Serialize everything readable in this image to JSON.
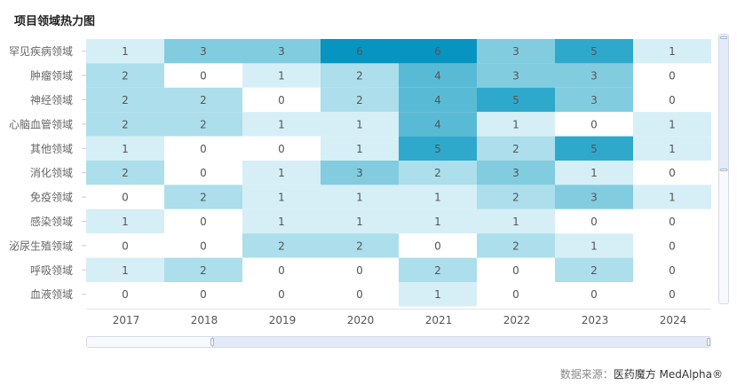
{
  "title": "项目领域热力图",
  "source_label": "数据来源：",
  "source_brand": "医药魔方 MedAlpha®",
  "colors": {
    "scale": [
      "#ffffff",
      "#d6eff6",
      "#acdeeb",
      "#82cce0",
      "#59bad5",
      "#2fa9cb",
      "#0894c0"
    ]
  },
  "chart_data": {
    "type": "heatmap",
    "x": [
      "2017",
      "2018",
      "2019",
      "2020",
      "2021",
      "2022",
      "2023",
      "2024"
    ],
    "y": [
      "罕见疾病领域",
      "肿瘤领域",
      "神经领域",
      "心脑血管领域",
      "其他领域",
      "消化领域",
      "免疫领域",
      "感染领域",
      "泌尿生殖领域",
      "呼吸领域",
      "血液领域"
    ],
    "values": [
      [
        1,
        3,
        3,
        6,
        6,
        3,
        5,
        1
      ],
      [
        2,
        0,
        1,
        2,
        4,
        3,
        3,
        0
      ],
      [
        2,
        2,
        0,
        2,
        4,
        5,
        3,
        0
      ],
      [
        2,
        2,
        1,
        1,
        4,
        1,
        0,
        1
      ],
      [
        1,
        0,
        0,
        1,
        5,
        2,
        5,
        1
      ],
      [
        2,
        0,
        1,
        3,
        2,
        3,
        1,
        0
      ],
      [
        0,
        2,
        1,
        1,
        1,
        2,
        3,
        1
      ],
      [
        1,
        0,
        1,
        1,
        1,
        1,
        0,
        0
      ],
      [
        0,
        0,
        2,
        2,
        0,
        2,
        1,
        0
      ],
      [
        1,
        2,
        0,
        0,
        2,
        0,
        2,
        0
      ],
      [
        0,
        0,
        0,
        0,
        1,
        0,
        0,
        0
      ]
    ]
  }
}
